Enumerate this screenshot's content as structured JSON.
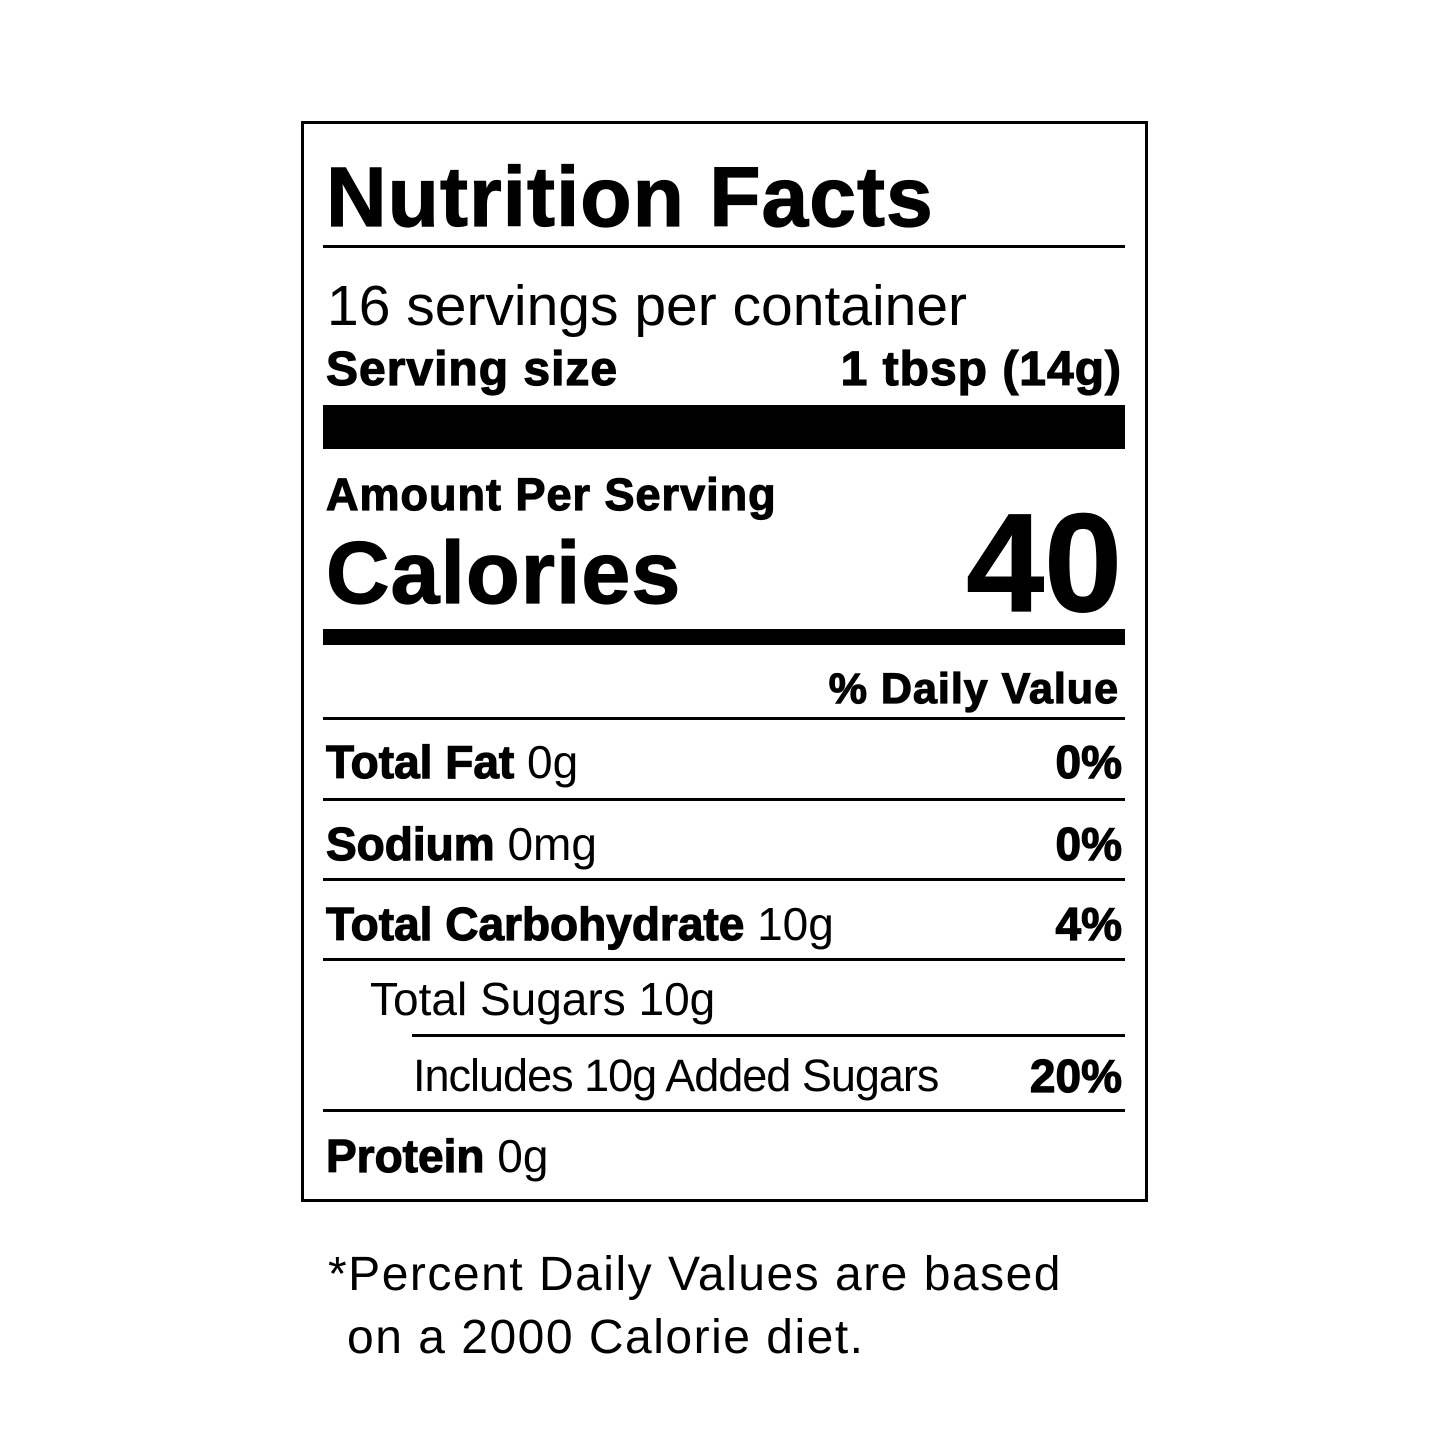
{
  "title": "Nutrition Facts",
  "servings_per_container": "16 servings per container",
  "serving_size": {
    "label": "Serving size",
    "value": "1 tbsp (14g)"
  },
  "amount_per_serving": "Amount Per Serving",
  "calories": {
    "label": "Calories",
    "value": "40"
  },
  "daily_value_header": "% Daily Value",
  "nutrients": [
    {
      "name": "Total Fat",
      "amount": "0g",
      "dv": "0%"
    },
    {
      "name": "Sodium",
      "amount": "0mg",
      "dv": "0%"
    },
    {
      "name": "Total Carbohydrate",
      "amount": "10g",
      "dv": "4%"
    },
    {
      "name": "Total Sugars",
      "amount": "10g"
    },
    {
      "name": "Includes 10g Added Sugars",
      "dv": "20%"
    },
    {
      "name": "Protein",
      "amount": "0g"
    }
  ],
  "footnote": {
    "line1": "*Percent Daily Values are based",
    "line2": "on a 2000 Calorie diet."
  }
}
